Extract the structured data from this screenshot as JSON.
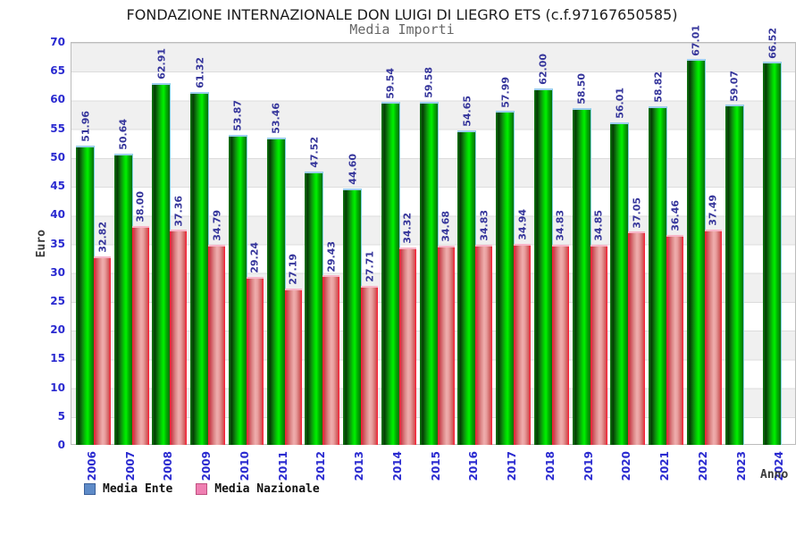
{
  "header": {
    "title": "FONDAZIONE INTERNAZIONALE DON LUIGI DI LIEGRO ETS (c.f.97167650585)",
    "subtitle": "Media Importi"
  },
  "axes": {
    "y_title": "Euro",
    "x_title": "Anno"
  },
  "legend": {
    "items": [
      {
        "label": "Media Ente",
        "swatch_color": "#5e8bc8"
      },
      {
        "label": "Media Nazionale",
        "swatch_color": "#ef7fb2"
      }
    ]
  },
  "colors": {
    "label_blue": "#2a2ad0",
    "value_label_blue": "#35359b",
    "bar_green": "#00d800",
    "bar_red": "#e9a0a0",
    "band_gray": "#f0f0f0",
    "subtitle_gray": "#666666"
  },
  "chart_data": {
    "type": "bar",
    "title": "Media Importi",
    "xlabel": "Anno",
    "ylabel": "Euro",
    "ylim": [
      0,
      70
    ],
    "ytick_step": 5,
    "yticks": [
      0,
      5,
      10,
      15,
      20,
      25,
      30,
      35,
      40,
      45,
      50,
      55,
      60,
      65,
      70
    ],
    "grid": "horizontal bands, alternating gray/white every 5 units",
    "legend_position": "bottom-left",
    "categories": [
      "2006",
      "2007",
      "2008",
      "2009",
      "2010",
      "2011",
      "2012",
      "2013",
      "2014",
      "2015",
      "2016",
      "2017",
      "2018",
      "2019",
      "2020",
      "2021",
      "2022",
      "2023",
      "2024"
    ],
    "series": [
      {
        "name": "Media Ente",
        "values": [
          51.96,
          50.64,
          62.91,
          61.32,
          53.87,
          53.46,
          47.52,
          44.6,
          59.54,
          59.58,
          54.65,
          57.99,
          62.0,
          58.5,
          56.01,
          58.82,
          67.01,
          59.07,
          66.52
        ],
        "labels": [
          "51.96",
          "50.64",
          "62.91",
          "61.32",
          "53.87",
          "53.46",
          "47.52",
          "44.60",
          "59.54",
          "59.58",
          "54.65",
          "57.99",
          "62.00",
          "58.50",
          "56.01",
          "58.82",
          "67.01",
          "59.07",
          "66.52"
        ]
      },
      {
        "name": "Media Nazionale",
        "values": [
          32.82,
          38.0,
          37.36,
          34.79,
          29.24,
          27.19,
          29.43,
          27.71,
          34.32,
          34.68,
          34.83,
          34.94,
          34.83,
          34.85,
          37.05,
          36.46,
          37.49,
          null,
          null
        ],
        "labels": [
          "32.82",
          "38.00",
          "37.36",
          "34.79",
          "29.24",
          "27.19",
          "29.43",
          "27.71",
          "34.32",
          "34.68",
          "34.83",
          "34.94",
          "34.83",
          "34.85",
          "37.05",
          "36.46",
          "37.49",
          null,
          null
        ]
      }
    ]
  }
}
